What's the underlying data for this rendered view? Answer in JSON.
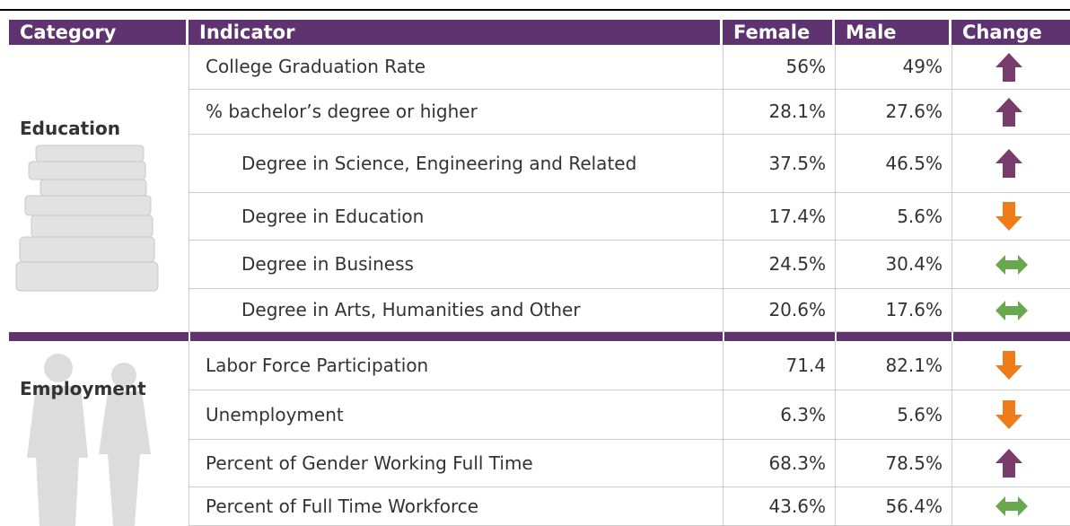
{
  "table": {
    "header": [
      "Category",
      "Indicator",
      "Female",
      "Male",
      "Change"
    ],
    "sections": [
      {
        "category": "Education",
        "rows": [
          [
            "College Graduation Rate",
            "56%",
            "49%"
          ],
          [
            "% bachelor’s degree or higher",
            "28.1%",
            "27.6%"
          ],
          [
            "Degree in Science, Engineering and Related",
            "37.5%",
            "46.5%"
          ],
          [
            "Degree in Education",
            "17.4%",
            "5.6%"
          ],
          [
            "Degree in Business",
            "24.5%",
            "30.4%"
          ],
          [
            "Degree in Arts, Humanities and Other",
            "20.6%",
            "17.6%"
          ]
        ]
      },
      {
        "category": "Employment",
        "rows": [
          [
            "Labor Force Participation",
            "71.4",
            "82.1%"
          ],
          [
            "Unemployment",
            "6.3%",
            "5.6%"
          ],
          [
            "Percent of Gender Working Full Time",
            "68.3%",
            "78.5%"
          ],
          [
            "Percent of Full Time Workforce",
            "43.6%",
            "56.4%"
          ]
        ]
      }
    ]
  }
}
